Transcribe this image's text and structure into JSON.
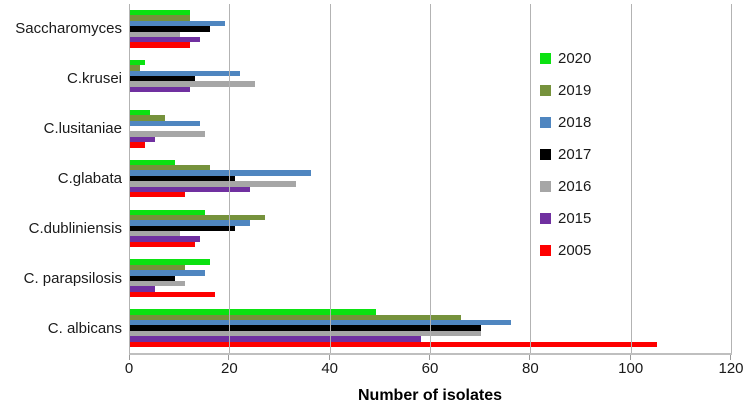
{
  "chart_data": {
    "type": "bar",
    "orientation": "horizontal",
    "title": "",
    "xlabel": "Number of isolates",
    "ylabel": "",
    "xlim": [
      0,
      120
    ],
    "x_ticks": [
      0,
      20,
      40,
      60,
      80,
      100,
      120
    ],
    "grid": true,
    "legend_position": "right-inside",
    "categories": [
      "Saccharomyces",
      "C.krusei",
      "C.lusitaniae",
      "C.glabata",
      "C.dubliniensis",
      "C. parapsilosis",
      "C. albicans"
    ],
    "series": [
      {
        "name": "2020",
        "color": "#0be211",
        "values": [
          12,
          3,
          4,
          9,
          15,
          16,
          49
        ]
      },
      {
        "name": "2019",
        "color": "#76923c",
        "values": [
          12,
          2,
          7,
          16,
          27,
          11,
          66
        ]
      },
      {
        "name": "2018",
        "color": "#4f86c0",
        "values": [
          19,
          22,
          14,
          36,
          24,
          15,
          76
        ]
      },
      {
        "name": "2017",
        "color": "#000000",
        "values": [
          16,
          13,
          0,
          21,
          21,
          9,
          70
        ]
      },
      {
        "name": "2016",
        "color": "#a6a6a6",
        "values": [
          10,
          25,
          15,
          33,
          10,
          11,
          70
        ]
      },
      {
        "name": "2015",
        "color": "#7030a0",
        "values": [
          14,
          12,
          5,
          24,
          14,
          5,
          58
        ]
      },
      {
        "name": "2005",
        "color": "#fe0000",
        "values": [
          12,
          0,
          3,
          11,
          13,
          17,
          105
        ]
      }
    ]
  },
  "style_colors": {
    "gridline": "#b3b3b3",
    "axis_line": "#bfbfbf",
    "tick_mark": "#9a9a9a",
    "text": "#1a1a1a"
  }
}
